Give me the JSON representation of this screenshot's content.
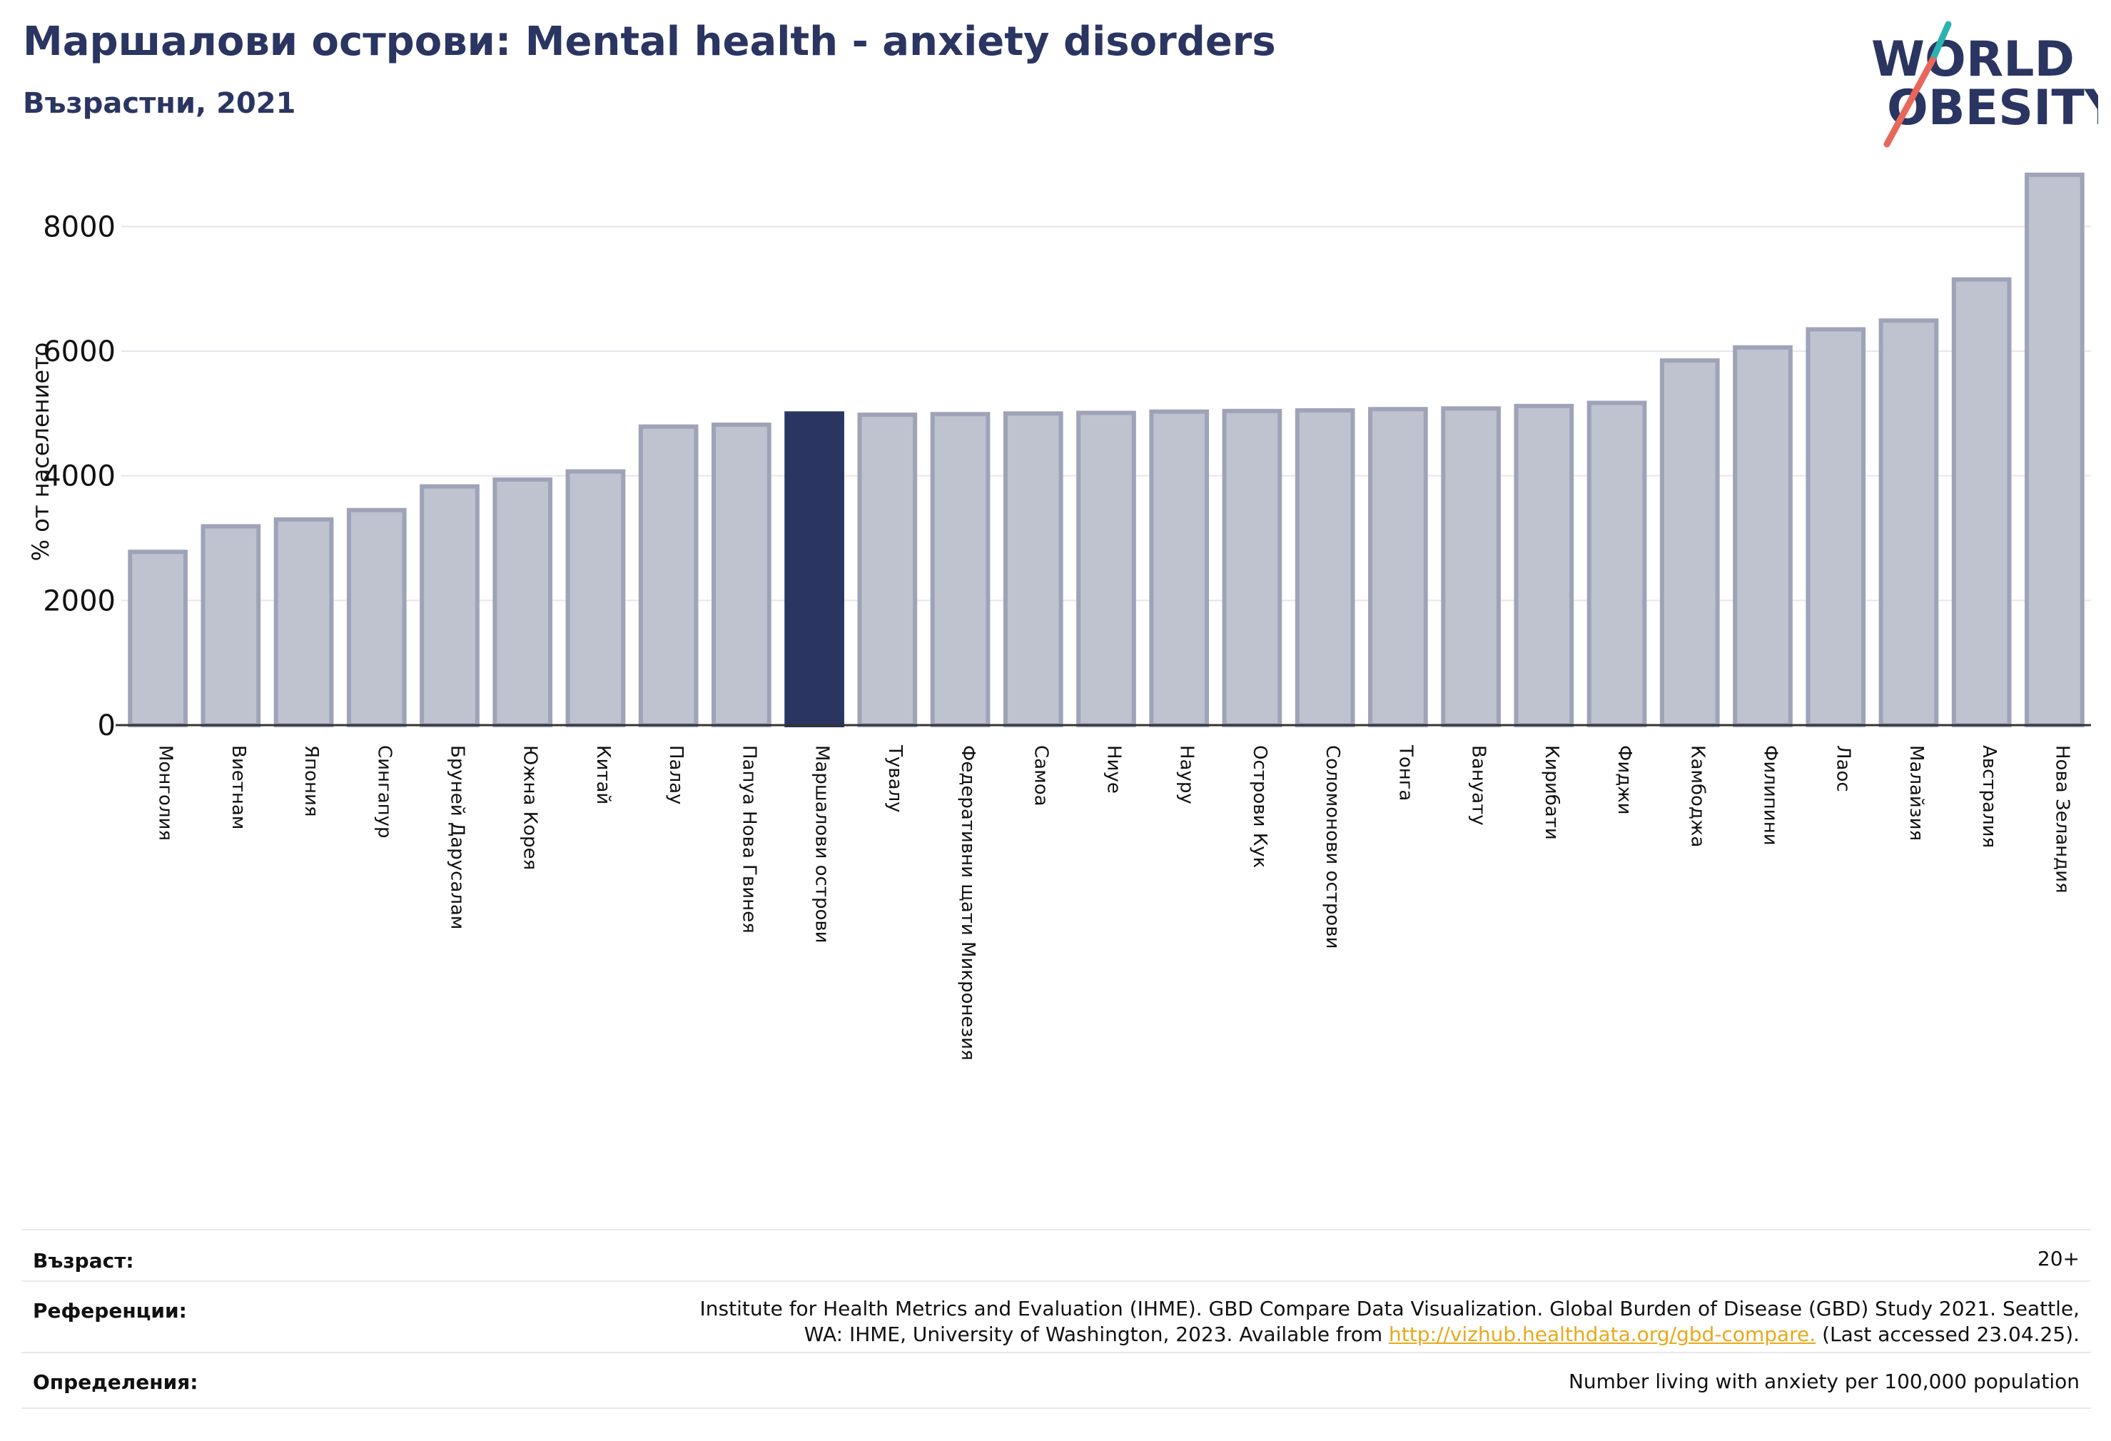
{
  "header": {
    "title": "Маршалови острови: Mental health - anxiety disorders",
    "subtitle": "Възрастни, 2021"
  },
  "logo": {
    "line1": "WORLD",
    "line2": "OBESITY",
    "accent_teal": "#2ab3b1",
    "accent_red": "#e8675a"
  },
  "colors": {
    "bar": "#bfc2cf",
    "bar_stroke": "#9ea3b8",
    "highlight": "#2b3561",
    "grid": "#e6e7ec",
    "axis": "#333333"
  },
  "chart_data": {
    "type": "bar",
    "ylabel": "% от населението",
    "ylim": [
      0,
      9000
    ],
    "yticks": [
      0,
      2000,
      4000,
      6000,
      8000
    ],
    "highlight": "Маршалови острови",
    "categories": [
      "Монголия",
      "Виетнам",
      "Япония",
      "Сингапур",
      "Бруней Дарусалам",
      "Южна Корея",
      "Китай",
      "Палау",
      "Папуа Нова Гвинея",
      "Маршалови острови",
      "Тувалу",
      "Федеративни щати Микронезия",
      "Самоа",
      "Ниуе",
      "Науру",
      "Острови Кук",
      "Соломонови острови",
      "Тонга",
      "Вануату",
      "Кирибати",
      "Фиджи",
      "Камбоджа",
      "Филипини",
      "Лаос",
      "Малайзия",
      "Австралия",
      "Нова Зеландия"
    ],
    "values": [
      2780,
      3190,
      3300,
      3450,
      3830,
      3940,
      4070,
      4790,
      4820,
      5000,
      4980,
      4990,
      5000,
      5010,
      5030,
      5040,
      5050,
      5070,
      5080,
      5120,
      5170,
      5850,
      6060,
      6350,
      6490,
      7150,
      8830
    ]
  },
  "footer": {
    "age_label": "Възраст:",
    "age_value": "20+",
    "ref_label": "Референции:",
    "ref_line1": "Institute for Health Metrics and Evaluation (IHME). GBD Compare Data Visualization. Global Burden of Disease (GBD) Study 2021. Seattle,",
    "ref_line2_pre": "WA: IHME, University of Washington, 2023. Available from ",
    "ref_link": "http://vizhub.healthdata.org/gbd-compare.",
    "ref_line2_post": " (Last accessed 23.04.25).",
    "def_label": "Определения:",
    "def_value": "Number living with anxiety per 100,000 population"
  }
}
